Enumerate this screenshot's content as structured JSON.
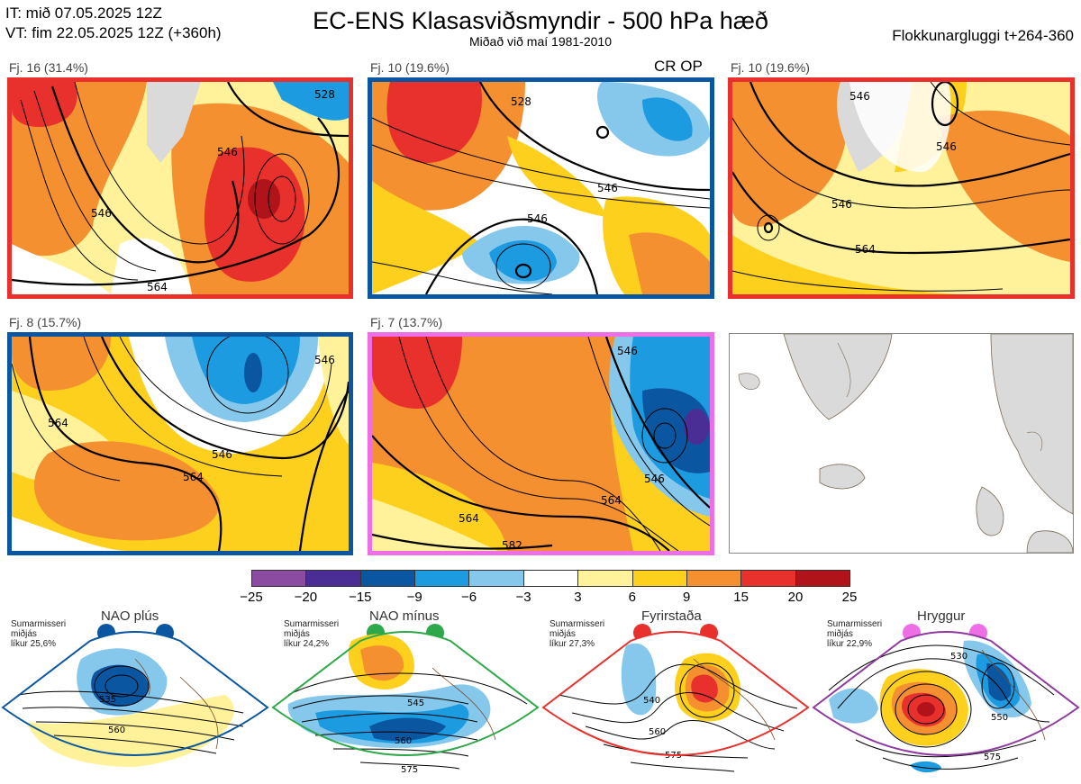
{
  "header": {
    "it_line": "IT: mið 07.05.2025 12Z",
    "vt_line": "VT: fim 22.05.2025 12Z  (+360h)",
    "title": "EC-ENS Klasasviðsmyndir - 500 hPa hæð",
    "subtitle": "Miðað við maí 1981-2010",
    "window": "Flokkunargluggi t+264-360"
  },
  "clusters": [
    {
      "label": "Fj. 16 (31.4%)",
      "border": "#e8302c",
      "contours": [
        "528",
        "546",
        "564",
        "546"
      ]
    },
    {
      "label": "Fj. 10 (19.6%)",
      "border": "#0a56a0",
      "badge": "CR OP",
      "contours": [
        "528",
        "546",
        "546"
      ]
    },
    {
      "label": "Fj. 10 (19.6%)",
      "border": "#e8302c",
      "contours": [
        "546",
        "546",
        "564",
        "546"
      ]
    },
    {
      "label": "Fj. 8 (15.7%)",
      "border": "#0a56a0",
      "contours": [
        "546",
        "564",
        "546",
        "564"
      ]
    },
    {
      "label": "Fj. 7 (13.7%)",
      "border": "#ee6ee6",
      "contours": [
        "546",
        "564",
        "564",
        "582",
        "546"
      ]
    }
  ],
  "colorbar": {
    "ticks": [
      "−25",
      "−20",
      "−15",
      "−9",
      "−6",
      "−3",
      "3",
      "6",
      "9",
      "15",
      "20",
      "25"
    ],
    "colors": [
      "#8b4ba0",
      "#4b2d96",
      "#0a56a0",
      "#1d9be0",
      "#86c8ec",
      "#ffffff",
      "#fff29a",
      "#fdd01e",
      "#f4902f",
      "#e8302c",
      "#b0141a"
    ]
  },
  "regimes": [
    {
      "name": "NAO plús",
      "season": "Sumarmisseri",
      "median": "miðjás",
      "prob": "líkur 25,6%",
      "color": "#0a56a0",
      "contours": [
        "535",
        "560"
      ]
    },
    {
      "name": "NAO mínus",
      "season": "Sumarmisseri",
      "median": "miðjás",
      "prob": "líkur 24,2%",
      "color": "#2da84a",
      "contours": [
        "545",
        "560",
        "575"
      ]
    },
    {
      "name": "Fyrirstaða",
      "season": "Sumarmisseri",
      "median": "miðjás",
      "prob": "líkur 27,3%",
      "color": "#e8302c",
      "contours": [
        "540",
        "560",
        "575"
      ]
    },
    {
      "name": "Hryggur",
      "season": "Sumarmisseri",
      "median": "miðjás",
      "prob": "líkur 22,9%",
      "color": "#8e3aa0",
      "contours": [
        "530",
        "550",
        "575"
      ]
    }
  ]
}
